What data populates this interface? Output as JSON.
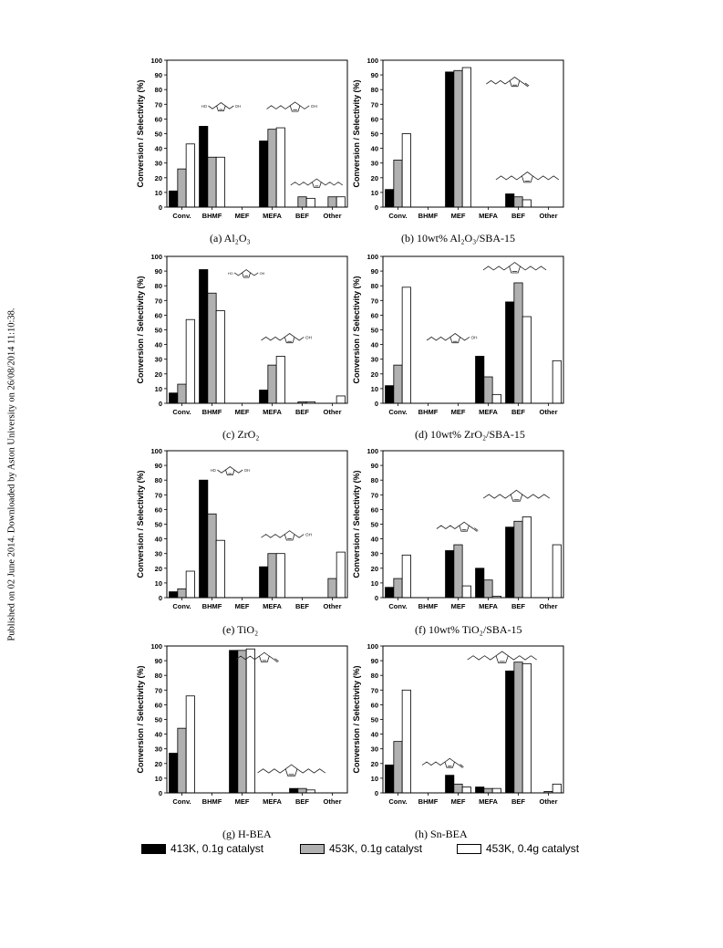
{
  "side_note": "Published on 02 June 2014. Downloaded by Aston University on 26/08/2014 11:10:38.",
  "colors": {
    "s1": "#000000",
    "s2": "#b0b0b0",
    "s3": "#ffffff"
  },
  "legend": [
    {
      "label": "413K, 0.1g catalyst"
    },
    {
      "label": "453K, 0.1g catalyst"
    },
    {
      "label": "453K, 0.4g catalyst"
    }
  ],
  "chart_data": [
    {
      "id": "a",
      "type": "bar",
      "caption": "(a) Al₂O₃",
      "ylabel": "Conversion / Selectivity (%)",
      "ylim": [
        0,
        100
      ],
      "yticks": [
        "0",
        "10",
        "20",
        "30",
        "40",
        "50",
        "60",
        "70",
        "80",
        "90",
        "100"
      ],
      "categories": [
        "Conv.",
        "BHMF",
        "MEF",
        "MEFA",
        "BEF",
        "Other"
      ],
      "series": [
        {
          "name": "413K, 0.1g catalyst",
          "values": [
            11,
            55,
            0,
            45,
            0,
            0
          ]
        },
        {
          "name": "453K, 0.1g catalyst",
          "values": [
            26,
            34,
            0,
            53,
            7,
            7
          ]
        },
        {
          "name": "453K, 0.4g catalyst",
          "values": [
            43,
            34,
            0,
            54,
            6,
            7
          ]
        }
      ],
      "structures": [
        {
          "kind": "BHMF",
          "rx": 0.3,
          "ry": 0.32,
          "w": 64
        },
        {
          "kind": "MEFA",
          "rx": 0.71,
          "ry": 0.32,
          "w": 72
        },
        {
          "kind": "BEF",
          "rx": 0.83,
          "ry": 0.84,
          "w": 66
        }
      ]
    },
    {
      "id": "b",
      "type": "bar",
      "caption": "(b) 10wt% Al₂O₃/SBA-15",
      "ylabel": "Conversion / Selectivity (%)",
      "ylim": [
        0,
        100
      ],
      "yticks": [
        "0",
        "10",
        "20",
        "30",
        "40",
        "50",
        "60",
        "70",
        "80",
        "90",
        "100"
      ],
      "categories": [
        "Conv.",
        "BHMF",
        "MEF",
        "MEFA",
        "BEF",
        "Other"
      ],
      "series": [
        {
          "name": "413K, 0.1g catalyst",
          "values": [
            12,
            0,
            92,
            0,
            9,
            0
          ]
        },
        {
          "name": "453K, 0.1g catalyst",
          "values": [
            32,
            0,
            93,
            0,
            7,
            0
          ]
        },
        {
          "name": "453K, 0.4g catalyst",
          "values": [
            50,
            0,
            95,
            0,
            5,
            0
          ]
        }
      ],
      "structures": [
        {
          "kind": "MEF",
          "rx": 0.73,
          "ry": 0.15,
          "w": 72
        },
        {
          "kind": "BEF",
          "rx": 0.8,
          "ry": 0.8,
          "w": 80
        }
      ]
    },
    {
      "id": "c",
      "type": "bar",
      "caption": "(c) ZrO₂",
      "ylabel": "Conversion / Selectivity (%)",
      "ylim": [
        0,
        100
      ],
      "yticks": [
        "0",
        "10",
        "20",
        "30",
        "40",
        "50",
        "60",
        "70",
        "80",
        "90",
        "100"
      ],
      "categories": [
        "Conv.",
        "BHMF",
        "MEF",
        "MEFA",
        "BEF",
        "Other"
      ],
      "series": [
        {
          "name": "413K, 0.1g catalyst",
          "values": [
            7,
            91,
            0,
            9,
            0,
            0
          ]
        },
        {
          "name": "453K, 0.1g catalyst",
          "values": [
            13,
            75,
            0,
            26,
            1,
            0
          ]
        },
        {
          "name": "453K, 0.4g catalyst",
          "values": [
            57,
            63,
            0,
            32,
            1,
            5
          ]
        }
      ],
      "structures": [
        {
          "kind": "BHMF",
          "rx": 0.44,
          "ry": 0.12,
          "w": 60
        },
        {
          "kind": "MEFA",
          "rx": 0.68,
          "ry": 0.56,
          "w": 72
        }
      ]
    },
    {
      "id": "d",
      "type": "bar",
      "caption": "(d) 10wt% ZrO₂/SBA-15",
      "ylabel": "Conversion / Selectivity (%)",
      "ylim": [
        0,
        100
      ],
      "yticks": [
        "0",
        "10",
        "20",
        "30",
        "40",
        "50",
        "60",
        "70",
        "80",
        "90",
        "100"
      ],
      "categories": [
        "Conv.",
        "BHMF",
        "MEF",
        "MEFA",
        "BEF",
        "Other"
      ],
      "series": [
        {
          "name": "413K, 0.1g catalyst",
          "values": [
            12,
            0,
            0,
            32,
            69,
            0
          ]
        },
        {
          "name": "453K, 0.1g catalyst",
          "values": [
            26,
            0,
            0,
            18,
            82,
            0
          ]
        },
        {
          "name": "453K, 0.4g catalyst",
          "values": [
            79,
            0,
            0,
            6,
            59,
            29
          ]
        }
      ],
      "structures": [
        {
          "kind": "BEF",
          "rx": 0.73,
          "ry": 0.08,
          "w": 80
        },
        {
          "kind": "MEFA",
          "rx": 0.4,
          "ry": 0.56,
          "w": 72
        }
      ]
    },
    {
      "id": "e",
      "type": "bar",
      "caption": "(e) TiO₂",
      "ylabel": "Conversion / Selectivity (%)",
      "ylim": [
        0,
        100
      ],
      "yticks": [
        "0",
        "10",
        "20",
        "30",
        "40",
        "50",
        "60",
        "70",
        "80",
        "90",
        "100"
      ],
      "categories": [
        "Conv.",
        "BHMF",
        "MEF",
        "MEFA",
        "BEF",
        "Other"
      ],
      "series": [
        {
          "name": "413K, 0.1g catalyst",
          "values": [
            4,
            80,
            0,
            21,
            0,
            0
          ]
        },
        {
          "name": "453K, 0.1g catalyst",
          "values": [
            6,
            57,
            0,
            30,
            0,
            13
          ]
        },
        {
          "name": "453K, 0.4g catalyst",
          "values": [
            18,
            39,
            0,
            30,
            0,
            31
          ]
        }
      ],
      "structures": [
        {
          "kind": "BHMF",
          "rx": 0.35,
          "ry": 0.14,
          "w": 64
        },
        {
          "kind": "MEFA",
          "rx": 0.68,
          "ry": 0.58,
          "w": 72
        }
      ]
    },
    {
      "id": "f",
      "type": "bar",
      "caption": "(f) 10wt% TiO₂/SBA-15",
      "ylabel": "Conversion / Selectivity (%)",
      "ylim": [
        0,
        100
      ],
      "yticks": [
        "0",
        "10",
        "20",
        "30",
        "40",
        "50",
        "60",
        "70",
        "80",
        "90",
        "100"
      ],
      "categories": [
        "Conv.",
        "BHMF",
        "MEF",
        "MEFA",
        "BEF",
        "Other"
      ],
      "series": [
        {
          "name": "413K, 0.1g catalyst",
          "values": [
            7,
            0,
            32,
            20,
            48,
            0
          ]
        },
        {
          "name": "453K, 0.1g catalyst",
          "values": [
            13,
            0,
            36,
            12,
            52,
            0
          ]
        },
        {
          "name": "453K, 0.4g catalyst",
          "values": [
            29,
            0,
            8,
            1,
            55,
            36
          ]
        }
      ],
      "structures": [
        {
          "kind": "MEF",
          "rx": 0.45,
          "ry": 0.52,
          "w": 70
        },
        {
          "kind": "BEF",
          "rx": 0.74,
          "ry": 0.31,
          "w": 84
        }
      ]
    },
    {
      "id": "g",
      "type": "bar",
      "caption": "(g) H-BEA",
      "ylabel": "Conversion / Selectivity (%)",
      "ylim": [
        0,
        100
      ],
      "yticks": [
        "0",
        "10",
        "20",
        "30",
        "40",
        "50",
        "60",
        "70",
        "80",
        "90",
        "100"
      ],
      "categories": [
        "Conv.",
        "BHMF",
        "MEF",
        "MEFA",
        "BEF",
        "Other"
      ],
      "series": [
        {
          "name": "413K, 0.1g catalyst",
          "values": [
            27,
            0,
            97,
            0,
            3,
            0
          ]
        },
        {
          "name": "453K, 0.1g catalyst",
          "values": [
            44,
            0,
            97,
            0,
            3,
            0
          ]
        },
        {
          "name": "453K, 0.4g catalyst",
          "values": [
            66,
            0,
            98,
            0,
            2,
            0
          ]
        }
      ],
      "structures": [
        {
          "kind": "MEF",
          "rx": 0.54,
          "ry": 0.08,
          "w": 72
        },
        {
          "kind": "BEF",
          "rx": 0.69,
          "ry": 0.85,
          "w": 86
        }
      ]
    },
    {
      "id": "h",
      "type": "bar",
      "caption": "(h) Sn-BEA",
      "ylabel": "Conversion / Selectivity (%)",
      "ylim": [
        0,
        100
      ],
      "yticks": [
        "0",
        "10",
        "20",
        "30",
        "40",
        "50",
        "60",
        "70",
        "80",
        "90",
        "100"
      ],
      "categories": [
        "Conv.",
        "BHMF",
        "MEF",
        "MEFA",
        "BEF",
        "Other"
      ],
      "series": [
        {
          "name": "413K, 0.1g catalyst",
          "values": [
            19,
            0,
            12,
            4,
            83,
            0
          ]
        },
        {
          "name": "453K, 0.1g catalyst",
          "values": [
            35,
            0,
            6,
            3,
            89,
            1
          ]
        },
        {
          "name": "453K, 0.4g catalyst",
          "values": [
            70,
            0,
            4,
            3,
            88,
            6
          ]
        }
      ],
      "structures": [
        {
          "kind": "BEF",
          "rx": 0.66,
          "ry": 0.08,
          "w": 88
        },
        {
          "kind": "MEF",
          "rx": 0.37,
          "ry": 0.8,
          "w": 70
        }
      ]
    }
  ]
}
